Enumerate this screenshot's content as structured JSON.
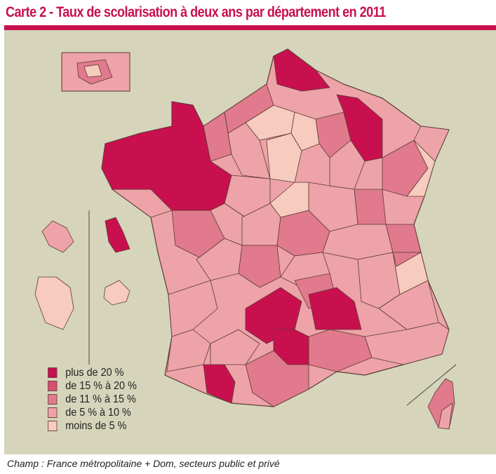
{
  "title": "Carte 2 - Taux de scolarisation à deux ans par département en 2011",
  "legend": [
    {
      "label": "plus de 20 %",
      "color": "#c8104f"
    },
    {
      "label": "de 15 % à 20 %",
      "color": "#d65072"
    },
    {
      "label": "de 11 % à 15 %",
      "color": "#e07a8c"
    },
    {
      "label": "de 5 % à 10 %",
      "color": "#eda3a8"
    },
    {
      "label": "moins de 5 %",
      "color": "#f7cbbd"
    }
  ],
  "colors": {
    "accent": "#c8104f",
    "background": "#d6d5bb",
    "border": "#5a3a36"
  },
  "footer": "Champ : France métropolitaine + Dom, secteurs public et privé"
}
